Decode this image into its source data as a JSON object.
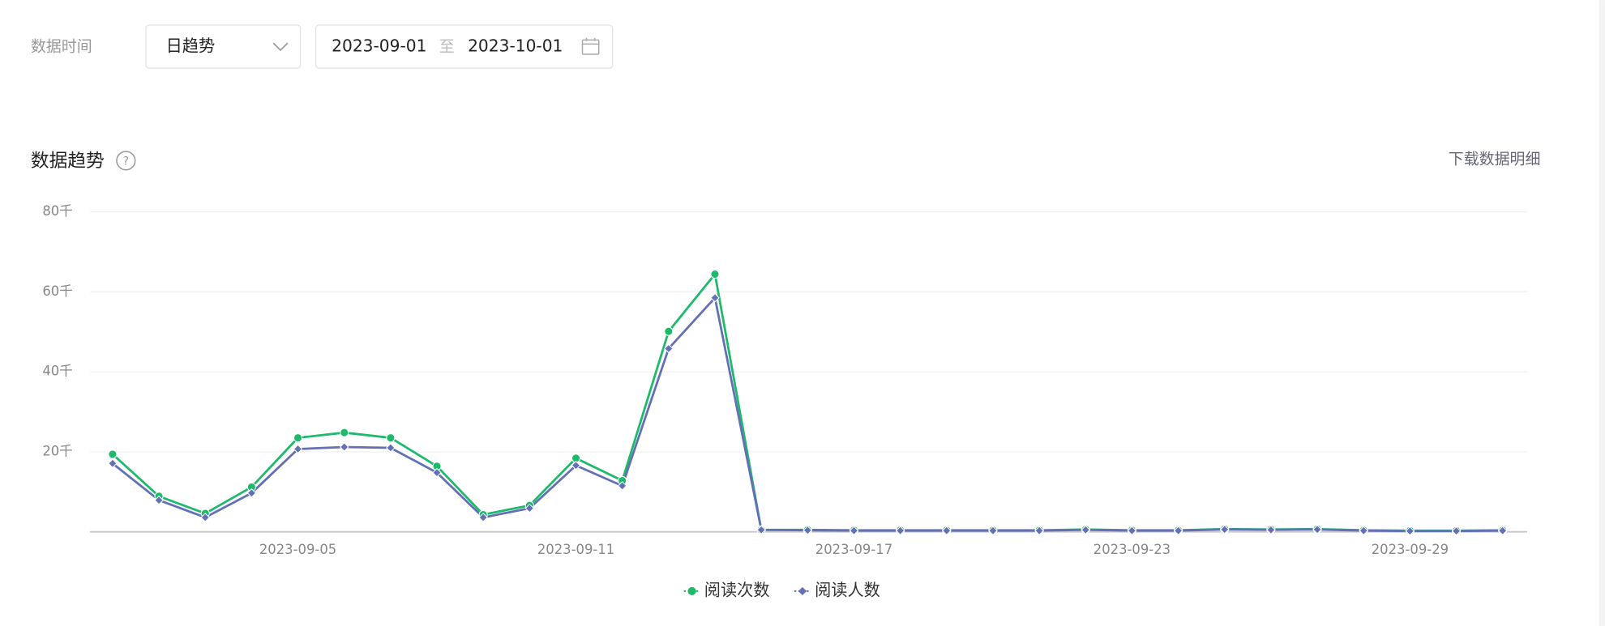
{
  "filter": {
    "label": "数据时间",
    "granularity": "日趋势",
    "start_date": "2023-09-01",
    "separator": "至",
    "end_date": "2023-10-01"
  },
  "section": {
    "title": "数据趋势",
    "download": "下载数据明细"
  },
  "chart_data": {
    "type": "line",
    "categories": [
      null,
      null,
      null,
      null,
      "2023-09-05",
      null,
      null,
      null,
      null,
      null,
      "2023-09-11",
      null,
      null,
      null,
      null,
      null,
      "2023-09-17",
      null,
      null,
      null,
      null,
      null,
      "2023-09-23",
      null,
      null,
      null,
      null,
      null,
      "2023-09-29",
      null,
      null
    ],
    "series": [
      {
        "name": "阅读次数",
        "color": "#1dba6c",
        "marker": "circle",
        "values": [
          19.4,
          8.9,
          4.6,
          11.2,
          23.5,
          24.8,
          23.5,
          16.4,
          4.3,
          6.6,
          18.4,
          12.8,
          50.1,
          64.4,
          0.5,
          0.5,
          0.4,
          0.4,
          0.4,
          0.4,
          0.4,
          0.6,
          0.4,
          0.4,
          0.7,
          0.6,
          0.7,
          0.4,
          0.3,
          0.3,
          0.4
        ]
      },
      {
        "name": "阅读人数",
        "color": "#6470b6",
        "marker": "diamond",
        "values": [
          17.1,
          7.9,
          3.6,
          9.7,
          20.7,
          21.2,
          21.0,
          14.8,
          3.6,
          5.9,
          16.6,
          11.5,
          45.8,
          58.5,
          0.5,
          0.4,
          0.3,
          0.3,
          0.3,
          0.3,
          0.3,
          0.5,
          0.3,
          0.3,
          0.6,
          0.5,
          0.6,
          0.3,
          0.2,
          0.2,
          0.3
        ]
      }
    ],
    "ylim": [
      0,
      80
    ],
    "yticks": [
      {
        "value": 20,
        "label": "20千"
      },
      {
        "value": 40,
        "label": "40千"
      },
      {
        "value": 60,
        "label": "60千"
      },
      {
        "value": 80,
        "label": "80千"
      }
    ],
    "grid": true
  }
}
